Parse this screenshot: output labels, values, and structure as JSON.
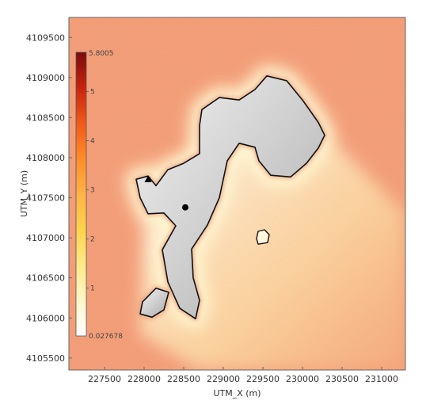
{
  "chart_data": {
    "type": "heatmap",
    "xlabel": "UTM_X (m)",
    "ylabel": "UTM_Y (m)",
    "xlim": [
      227050,
      231300
    ],
    "ylim": [
      4105350,
      4109750
    ],
    "x_ticks": [
      "227500",
      "228000",
      "228500",
      "229000",
      "229500",
      "230000",
      "230500",
      "231000"
    ],
    "y_ticks": [
      "4105500",
      "4106000",
      "4106500",
      "4107000",
      "4107500",
      "4108000",
      "4108500",
      "4109000",
      "4109500"
    ],
    "colorbar": {
      "max_label": "5.8005",
      "min_label": "0.027678",
      "tick_labels": [
        "5",
        "4",
        "3",
        "2",
        "1"
      ],
      "min": 0.027678,
      "max": 5.8005,
      "colors": [
        "#ffffff",
        "#fff6c8",
        "#ffe98a",
        "#ffd24d",
        "#ffb347",
        "#ff8c2a",
        "#f05a1a",
        "#c8230e",
        "#7a0c0c"
      ]
    },
    "background_color": "#f3a07a",
    "markers": [
      {
        "symbol": "triangle",
        "x": 228050,
        "y": 4107730
      },
      {
        "symbol": "circle",
        "x": 228520,
        "y": 4107380
      }
    ],
    "main_region_outline": [
      [
        227900,
        4107730
      ],
      [
        228050,
        4107770
      ],
      [
        228150,
        4107650
      ],
      [
        228300,
        4107850
      ],
      [
        228500,
        4107930
      ],
      [
        228700,
        4108050
      ],
      [
        228700,
        4108400
      ],
      [
        228730,
        4108600
      ],
      [
        228950,
        4108750
      ],
      [
        229200,
        4108720
      ],
      [
        229400,
        4108850
      ],
      [
        229550,
        4109020
      ],
      [
        229800,
        4108960
      ],
      [
        230000,
        4108720
      ],
      [
        230200,
        4108440
      ],
      [
        230280,
        4108280
      ],
      [
        230200,
        4108120
      ],
      [
        230050,
        4107930
      ],
      [
        229850,
        4107760
      ],
      [
        229600,
        4107780
      ],
      [
        229450,
        4107960
      ],
      [
        229400,
        4108130
      ],
      [
        229200,
        4108180
      ],
      [
        229050,
        4107960
      ],
      [
        228950,
        4107500
      ],
      [
        228800,
        4107160
      ],
      [
        228600,
        4106860
      ],
      [
        228620,
        4106500
      ],
      [
        228700,
        4106220
      ],
      [
        228650,
        4105990
      ],
      [
        228450,
        4106120
      ],
      [
        228300,
        4106450
      ],
      [
        228230,
        4106850
      ],
      [
        228400,
        4107150
      ],
      [
        228250,
        4107310
      ],
      [
        228050,
        4107300
      ],
      [
        227950,
        4107500
      ]
    ],
    "southwest_region_outline": [
      [
        227950,
        4106050
      ],
      [
        228100,
        4106010
      ],
      [
        228250,
        4106100
      ],
      [
        228310,
        4106320
      ],
      [
        228150,
        4106370
      ],
      [
        227980,
        4106200
      ]
    ],
    "small_region_outline": [
      [
        229440,
        4106920
      ],
      [
        229560,
        4106940
      ],
      [
        229580,
        4107040
      ],
      [
        229520,
        4107100
      ],
      [
        229440,
        4107080
      ],
      [
        229420,
        4106990
      ]
    ]
  }
}
